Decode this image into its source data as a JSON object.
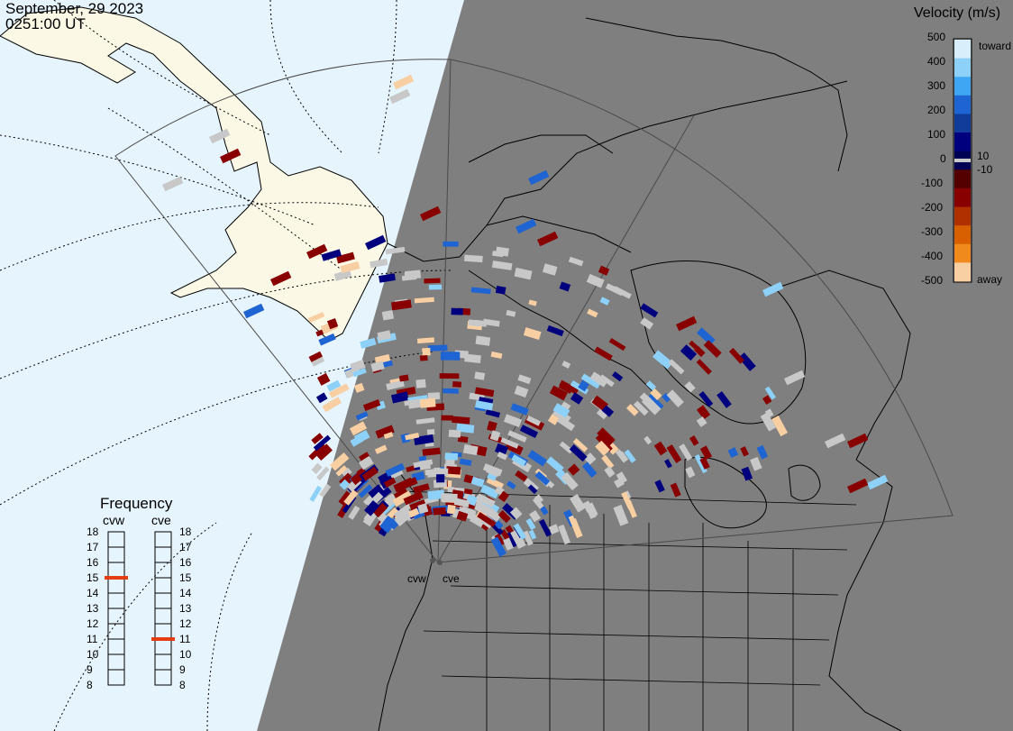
{
  "header": {
    "date": "September, 29 2023",
    "time": "0251:00 UT"
  },
  "colors": {
    "ocean": "#e6f4fd",
    "land": "#fbf8e6",
    "night": "#7f7f7f",
    "ground_scatter": "#c8c8c8",
    "neg_strong": "#880000",
    "pos_strong": "#00007f",
    "pos_medium": "#1e64d2",
    "pos_light": "#8ed1f8",
    "neg_light": "#f8cfa3",
    "freq_marker": "#e43d11"
  },
  "velocity_scale": {
    "title": "Velocity (m/s)",
    "ticks": [
      "500",
      "400",
      "300",
      "200",
      "100",
      "0",
      "-100",
      "-200",
      "-300",
      "-400",
      "-500"
    ],
    "label_toward": "toward",
    "label_away": "away",
    "inner_pos": "10",
    "inner_neg": "-10"
  },
  "frequency": {
    "title": "Frequency",
    "radars": [
      {
        "name": "cvw",
        "freq_mhz": 15
      },
      {
        "name": "cve",
        "freq_mhz": 11
      }
    ],
    "ticks": [
      "18",
      "17",
      "16",
      "15",
      "14",
      "13",
      "12",
      "11",
      "10",
      "9",
      "8"
    ]
  },
  "radar_sites": [
    "cvw",
    "cve"
  ]
}
